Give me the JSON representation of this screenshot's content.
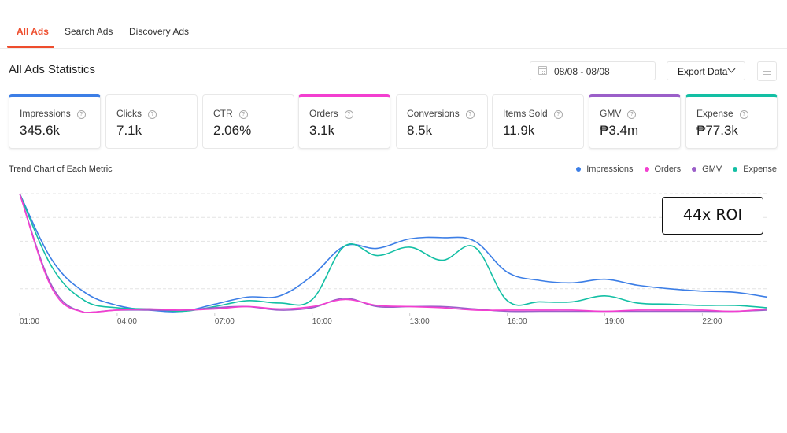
{
  "tabs": [
    {
      "label": "All Ads",
      "active": true
    },
    {
      "label": "Search Ads",
      "active": false
    },
    {
      "label": "Discovery Ads",
      "active": false
    }
  ],
  "page_title": "All Ads Statistics",
  "date_range": "08/08 - 08/08",
  "export_label": "Export Data",
  "icons": {
    "calendar": "calendar-icon",
    "chevron": "chevron-down-icon",
    "menu": "menu-icon",
    "help": "question-circle-icon"
  },
  "metrics": [
    {
      "label": "Impressions",
      "value": "345.6k",
      "selected": true,
      "color": "#3c7ee6"
    },
    {
      "label": "Clicks",
      "value": "7.1k",
      "selected": false
    },
    {
      "label": "CTR",
      "value": "2.06%",
      "selected": false
    },
    {
      "label": "Orders",
      "value": "3.1k",
      "selected": true,
      "color": "#f33fd0"
    },
    {
      "label": "Conversions",
      "value": "8.5k",
      "selected": false
    },
    {
      "label": "Items Sold",
      "value": "11.9k",
      "selected": false
    },
    {
      "label": "GMV",
      "value": "₱3.4m",
      "selected": true,
      "color": "#9b5fc9"
    },
    {
      "label": "Expense",
      "value": "₱77.3k",
      "selected": true,
      "color": "#13bfa4"
    }
  ],
  "help_glyph": "?",
  "annotation": "44x ROI",
  "chart_data": {
    "type": "line",
    "title": "Trend Chart of Each Metric",
    "xlabel": "",
    "ylabel": "",
    "x": [
      "01:00",
      "02:00",
      "03:00",
      "04:00",
      "05:00",
      "06:00",
      "07:00",
      "08:00",
      "09:00",
      "10:00",
      "11:00",
      "12:00",
      "13:00",
      "14:00",
      "15:00",
      "16:00",
      "17:00",
      "18:00",
      "19:00",
      "20:00",
      "21:00",
      "22:00",
      "23:00",
      "24:00"
    ],
    "x_tick_labels": [
      "01:00",
      "04:00",
      "07:00",
      "10:00",
      "13:00",
      "16:00",
      "19:00",
      "22:00"
    ],
    "ylim": [
      0,
      100
    ],
    "y_units": "relative (% of each series' max)",
    "grid": true,
    "legend_position": "top-right",
    "series": [
      {
        "name": "Impressions",
        "color": "#3c7ee6",
        "values": [
          100,
          44,
          17,
          6,
          2,
          1,
          7,
          13,
          14,
          31,
          56,
          54,
          62,
          63,
          60,
          34,
          27,
          25,
          28,
          23,
          20,
          18,
          17,
          13
        ]
      },
      {
        "name": "Orders",
        "color": "#f33fd0",
        "values": [
          100,
          20,
          0,
          2,
          3,
          2,
          3,
          5,
          3,
          5,
          11,
          6,
          5,
          4,
          2,
          2,
          2,
          2,
          1,
          2,
          2,
          2,
          1,
          3
        ]
      },
      {
        "name": "GMV",
        "color": "#9b5fc9",
        "values": [
          100,
          22,
          0,
          2,
          2,
          2,
          4,
          5,
          2,
          4,
          12,
          5,
          5,
          5,
          3,
          1,
          1,
          1,
          1,
          1,
          1,
          1,
          1,
          2
        ]
      },
      {
        "name": "Expense",
        "color": "#13bfa4",
        "values": [
          100,
          38,
          10,
          4,
          3,
          1,
          5,
          10,
          8,
          11,
          56,
          48,
          55,
          44,
          55,
          10,
          9,
          9,
          14,
          8,
          7,
          6,
          6,
          4
        ]
      }
    ]
  }
}
